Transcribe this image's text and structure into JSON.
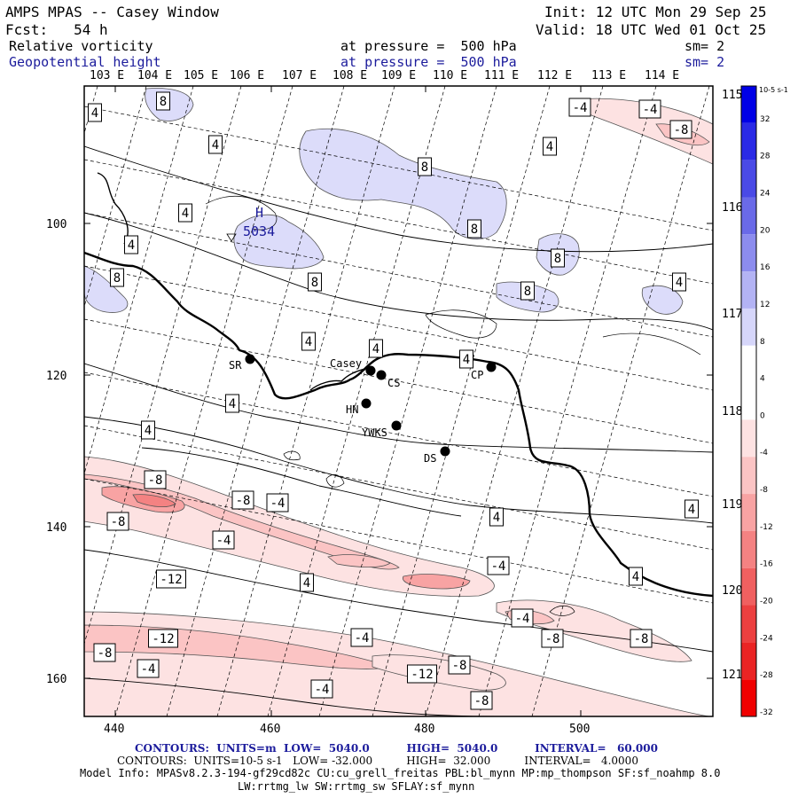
{
  "header": {
    "title": "AMPS MPAS -- Casey Window",
    "init": "Init: 12 UTC Mon 29 Sep 25",
    "forecast": "Fcst:   54 h",
    "valid": "Valid: 18 UTC Wed 01 Oct 25",
    "field1_name": "Relative vorticity",
    "field1_level": "at pressure =  500 hPa",
    "field1_sm": "sm= 2",
    "field2_name": "Geopotential height",
    "field2_level": "at pressure =  500 hPa",
    "field2_sm": "sm= 2"
  },
  "top_lon_labels": [
    "103 E",
    "104 E",
    "105 E",
    "106 E",
    "107 E",
    "108 E",
    "109 E",
    "110 E",
    "111 E",
    "112 E",
    "113 E",
    "114 E"
  ],
  "right_lon_labels": [
    "115 E",
    "116 E",
    "117 E",
    "118 E",
    "119 E",
    "120 E",
    "121 E"
  ],
  "left_y_labels": [
    "100",
    "120",
    "140",
    "160"
  ],
  "bottom_x_labels": [
    "440",
    "460",
    "480",
    "500"
  ],
  "stations": [
    {
      "label": "SR"
    },
    {
      "label": "Casey"
    },
    {
      "label": "CS"
    },
    {
      "label": "HN"
    },
    {
      "label": "YWKS"
    },
    {
      "label": "DS"
    },
    {
      "label": "CP"
    }
  ],
  "high_marker": {
    "letter": "H",
    "value": "5034"
  },
  "contour_labels": [
    "4",
    "8",
    "4",
    "4",
    "4",
    "8",
    "8",
    "8",
    "4",
    "8",
    "8",
    "4",
    "4",
    "4",
    "4",
    "4",
    "4",
    "8",
    "4",
    "-4",
    "-4",
    "-8",
    "-8",
    "-8",
    "-4",
    "-8",
    "-4",
    "-12",
    "4",
    "4",
    "-4",
    "4",
    "-4",
    "-8",
    "-4",
    "-8",
    "-12",
    "-8",
    "-4",
    "-4",
    "-12",
    "-8",
    "-8"
  ],
  "colorbar": {
    "unit": "10-5 s-1",
    "ticks": [
      "32",
      "28",
      "24",
      "20",
      "16",
      "12",
      "8",
      "4",
      "0",
      "-4",
      "-8",
      "-12",
      "-16",
      "-20",
      "-24",
      "-28",
      "-32"
    ],
    "colors": [
      "#0000e6",
      "#2a2ae6",
      "#4a4ae6",
      "#6a6ae8",
      "#8c8cee",
      "#b3b3f4",
      "#d6d6fa",
      "#ffffff",
      "#ffffff",
      "#fde2e2",
      "#fbc4c4",
      "#f8a3a3",
      "#f48282",
      "#f06060",
      "#ec4040",
      "#ea2424",
      "#f00000"
    ]
  },
  "footer": {
    "line1": "CONTOURS:  UNITS=m  LOW=  5040.0          HIGH=  5040.0          INTERVAL=   60.000",
    "line2": "CONTOURS:  UNITS=10-5 s-1   LOW= -32.000          HIGH=  32.000          INTERVAL=   4.0000",
    "line3": "Model Info: MPASv8.2.3-194-gf29cd82c CU:cu_grell_freitas PBL:bl_mynn MP:mp_thompson SF:sf_noahmp 8.0",
    "line4": "LW:rrtmg_lw SW:rrtmg_sw SFLAY:sf_mynn"
  }
}
